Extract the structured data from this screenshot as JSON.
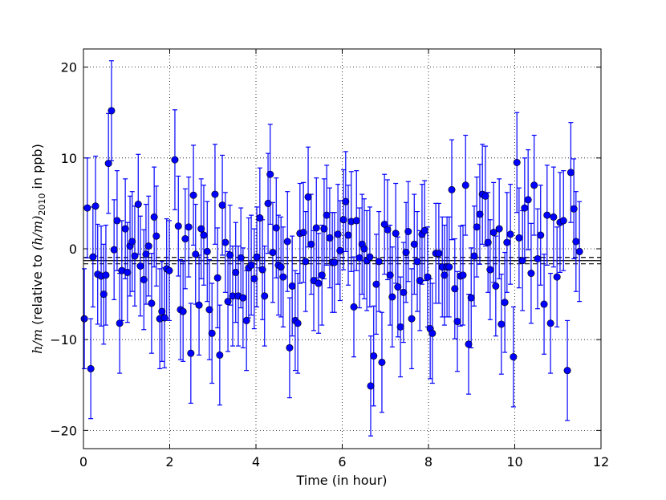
{
  "chart_data": {
    "type": "errorbar",
    "xlabel": "Time (in hour)",
    "ylabel_parts": [
      "h/m",
      " (relative to ",
      "(h/m)",
      "2010",
      " in ppb)"
    ],
    "color": "#0000ff",
    "xlim": [
      0,
      12
    ],
    "xticks": [
      0,
      2,
      4,
      6,
      8,
      10,
      12
    ],
    "ylim": [
      -22,
      22
    ],
    "yticks": [
      {
        "value": -20,
        "label": "−20"
      },
      {
        "value": -10,
        "label": "−10"
      },
      0,
      10,
      20
    ],
    "grid": true,
    "yerr": 5.5,
    "hlines": [
      {
        "value": -1.3,
        "style": "solid"
      },
      {
        "value": -0.95,
        "style": "dashed"
      },
      {
        "value": -1.65,
        "style": "dashed"
      }
    ],
    "x": [
      0.02,
      0.09,
      0.17,
      0.22,
      0.28,
      0.33,
      0.41,
      0.47,
      0.52,
      0.58,
      0.65,
      0.71,
      0.78,
      0.84,
      0.89,
      0.97,
      1.02,
      1.08,
      1.13,
      1.19,
      1.27,
      1.32,
      1.4,
      1.45,
      1.51,
      1.58,
      1.64,
      1.69,
      1.77,
      1.82,
      1.88,
      1.93,
      1.99,
      2.12,
      2.2,
      2.25,
      2.31,
      2.36,
      2.44,
      2.49,
      2.55,
      2.6,
      2.68,
      2.73,
      2.79,
      2.87,
      2.92,
      2.98,
      3.05,
      3.11,
      3.16,
      3.22,
      3.29,
      3.35,
      3.4,
      3.46,
      3.53,
      3.59,
      3.65,
      3.7,
      3.78,
      3.83,
      3.89,
      3.96,
      4.02,
      4.09,
      4.15,
      4.2,
      4.28,
      4.33,
      4.39,
      4.47,
      4.52,
      4.58,
      4.63,
      4.73,
      4.78,
      4.84,
      4.91,
      4.97,
      5.02,
      5.1,
      5.15,
      5.21,
      5.28,
      5.34,
      5.4,
      5.45,
      5.53,
      5.58,
      5.64,
      5.71,
      5.77,
      5.82,
      5.9,
      5.95,
      6.03,
      6.08,
      6.14,
      6.21,
      6.27,
      6.33,
      6.4,
      6.46,
      6.51,
      6.57,
      6.64,
      6.66,
      6.73,
      6.79,
      6.85,
      6.92,
      6.98,
      7.05,
      7.11,
      7.16,
      7.24,
      7.29,
      7.35,
      7.42,
      7.48,
      7.53,
      7.61,
      7.67,
      7.74,
      7.8,
      7.85,
      7.91,
      7.98,
      8.04,
      8.09,
      8.17,
      8.24,
      8.32,
      8.37,
      8.43,
      8.48,
      8.54,
      8.61,
      8.67,
      8.74,
      8.8,
      8.86,
      8.93,
      8.99,
      9.06,
      9.12,
      9.19,
      9.25,
      9.32,
      9.38,
      9.43,
      9.51,
      9.56,
      9.64,
      9.69,
      9.77,
      9.82,
      9.9,
      9.97,
      10.05,
      10.1,
      10.18,
      10.23,
      10.31,
      10.38,
      10.45,
      10.53,
      10.6,
      10.68,
      10.75,
      10.83,
      10.9,
      10.98,
      11.05,
      11.13,
      11.22,
      11.3,
      11.37,
      11.42,
      11.5
    ],
    "values": [
      -7.7,
      4.5,
      -13.2,
      -0.9,
      4.7,
      -2.8,
      -3.0,
      -5.0,
      -2.9,
      9.4,
      15.2,
      -0.1,
      3.1,
      -8.2,
      -2.4,
      2.2,
      -2.6,
      0.3,
      0.8,
      -0.8,
      4.9,
      -1.9,
      -3.4,
      -0.6,
      0.3,
      -6.0,
      3.5,
      1.4,
      -7.7,
      -6.9,
      -7.6,
      -2.2,
      -2.4,
      9.8,
      2.5,
      -6.7,
      -6.9,
      1.1,
      2.4,
      -11.5,
      5.9,
      -0.6,
      -6.2,
      2.2,
      1.5,
      -0.3,
      -6.7,
      -9.3,
      6.0,
      -3.2,
      -11.7,
      4.8,
      0.7,
      -5.8,
      -0.7,
      -5.2,
      -2.6,
      -5.2,
      -1.0,
      -5.4,
      -7.9,
      -2.1,
      -1.8,
      -3.3,
      -0.9,
      3.4,
      -2.3,
      -5.2,
      5.0,
      8.2,
      -0.4,
      2.3,
      -1.8,
      -2.0,
      -3.1,
      0.8,
      -10.9,
      -4.1,
      -7.9,
      -8.2,
      1.7,
      1.8,
      -1.4,
      5.7,
      0.5,
      -3.5,
      2.3,
      -3.8,
      -2.9,
      2.2,
      3.7,
      1.2,
      -1.5,
      -1.5,
      1.6,
      -0.2,
      3.2,
      5.2,
      1.5,
      3.0,
      -6.4,
      3.1,
      -1.0,
      0.5,
      0.0,
      -1.3,
      -0.9,
      -15.1,
      -11.8,
      -3.9,
      -1.4,
      -12.5,
      2.7,
      2.1,
      -2.9,
      -5.3,
      1.7,
      -4.2,
      -8.6,
      -4.8,
      -0.4,
      1.9,
      -7.7,
      0.5,
      -1.4,
      -3.5,
      1.6,
      2.0,
      -3.1,
      -8.8,
      -9.3,
      -0.5,
      -0.5,
      -2.0,
      -2.9,
      -2.0,
      -2.0,
      6.5,
      -4.4,
      -8.0,
      -3.0,
      -2.9,
      7.0,
      -10.5,
      -5.4,
      -0.8,
      2.4,
      3.8,
      6.0,
      5.8,
      0.7,
      -2.3,
      1.8,
      -4.1,
      2.2,
      -8.3,
      -5.9,
      0.7,
      1.6,
      -11.9,
      9.5,
      1.2,
      -1.3,
      4.5,
      5.4,
      -2.7,
      7.0,
      -1.1,
      1.5,
      -6.1,
      3.7,
      -8.2,
      3.5,
      -3.1,
      2.9,
      3.1,
      -13.4,
      8.4,
      4.4,
      0.8,
      -0.3
    ]
  }
}
